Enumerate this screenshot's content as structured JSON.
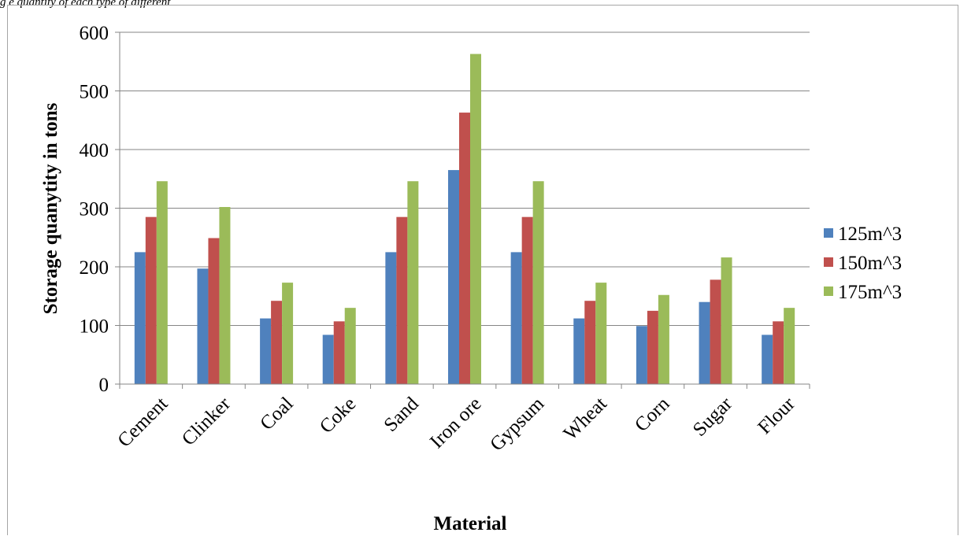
{
  "caption": "g e quantity of each type of different",
  "chart_data": {
    "type": "bar",
    "title": "",
    "xlabel": "Material",
    "ylabel": "Storage quanytity in tons",
    "ylim": [
      0,
      600
    ],
    "yticks": [
      0,
      100,
      200,
      300,
      400,
      500,
      600
    ],
    "grid": true,
    "legend_position": "right",
    "categories": [
      "Cement",
      "Clinker",
      "Coal",
      "Coke",
      "Sand",
      "Iron ore",
      "Gypsum",
      "Wheat",
      "Corn",
      "Sugar",
      "Flour"
    ],
    "series": [
      {
        "name": "125m^3",
        "color": "#4f81bd",
        "values": [
          225,
          197,
          112,
          84,
          225,
          365,
          225,
          112,
          99,
          140,
          84
        ]
      },
      {
        "name": "150m^3",
        "color": "#c0504d",
        "values": [
          285,
          249,
          142,
          107,
          285,
          463,
          285,
          142,
          125,
          178,
          107
        ]
      },
      {
        "name": "175m^3",
        "color": "#9bbb59",
        "values": [
          346,
          302,
          173,
          130,
          346,
          563,
          346,
          173,
          152,
          216,
          130
        ]
      }
    ]
  }
}
